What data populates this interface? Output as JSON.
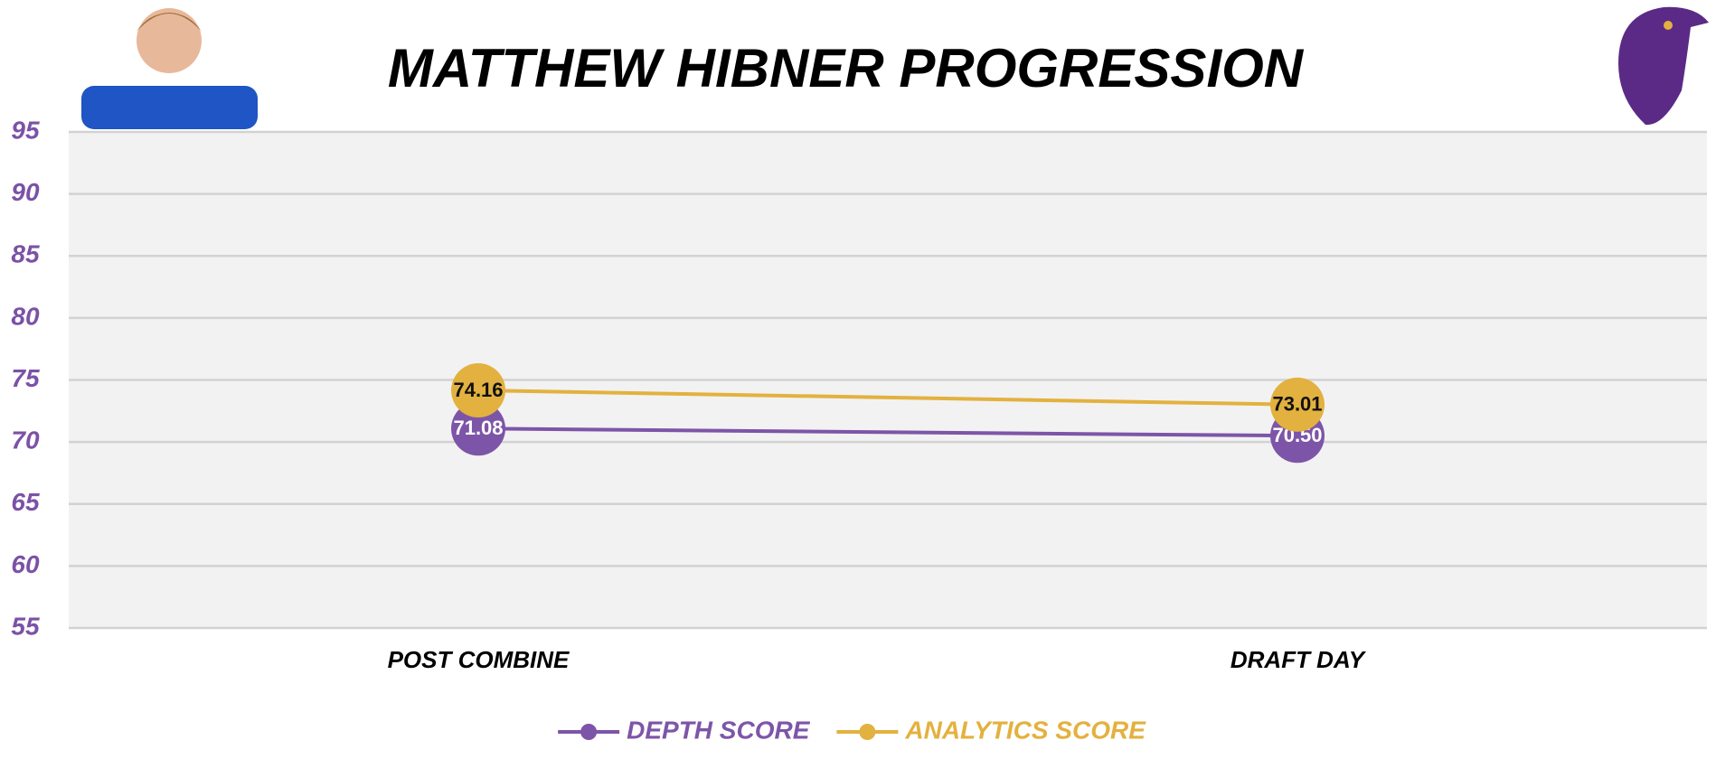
{
  "chart_data": {
    "type": "line",
    "title": "MATTHEW HIBNER PROGRESSION",
    "categories": [
      "POST COMBINE",
      "DRAFT DAY"
    ],
    "series": [
      {
        "name": "DEPTH SCORE",
        "color": "#7d55a8",
        "values": [
          71.08,
          70.5
        ],
        "value_labels": [
          "71.08",
          "70.50"
        ],
        "label_color": "#ffffff"
      },
      {
        "name": "ANALYTICS SCORE",
        "color": "#e3b13f",
        "values": [
          74.16,
          73.01
        ],
        "label_color": "#111111"
      }
    ],
    "ylim": [
      55,
      95
    ],
    "yticks": [
      55,
      60,
      65,
      70,
      75,
      80,
      85,
      90,
      95
    ],
    "grid": true,
    "legend": "bottom"
  }
}
